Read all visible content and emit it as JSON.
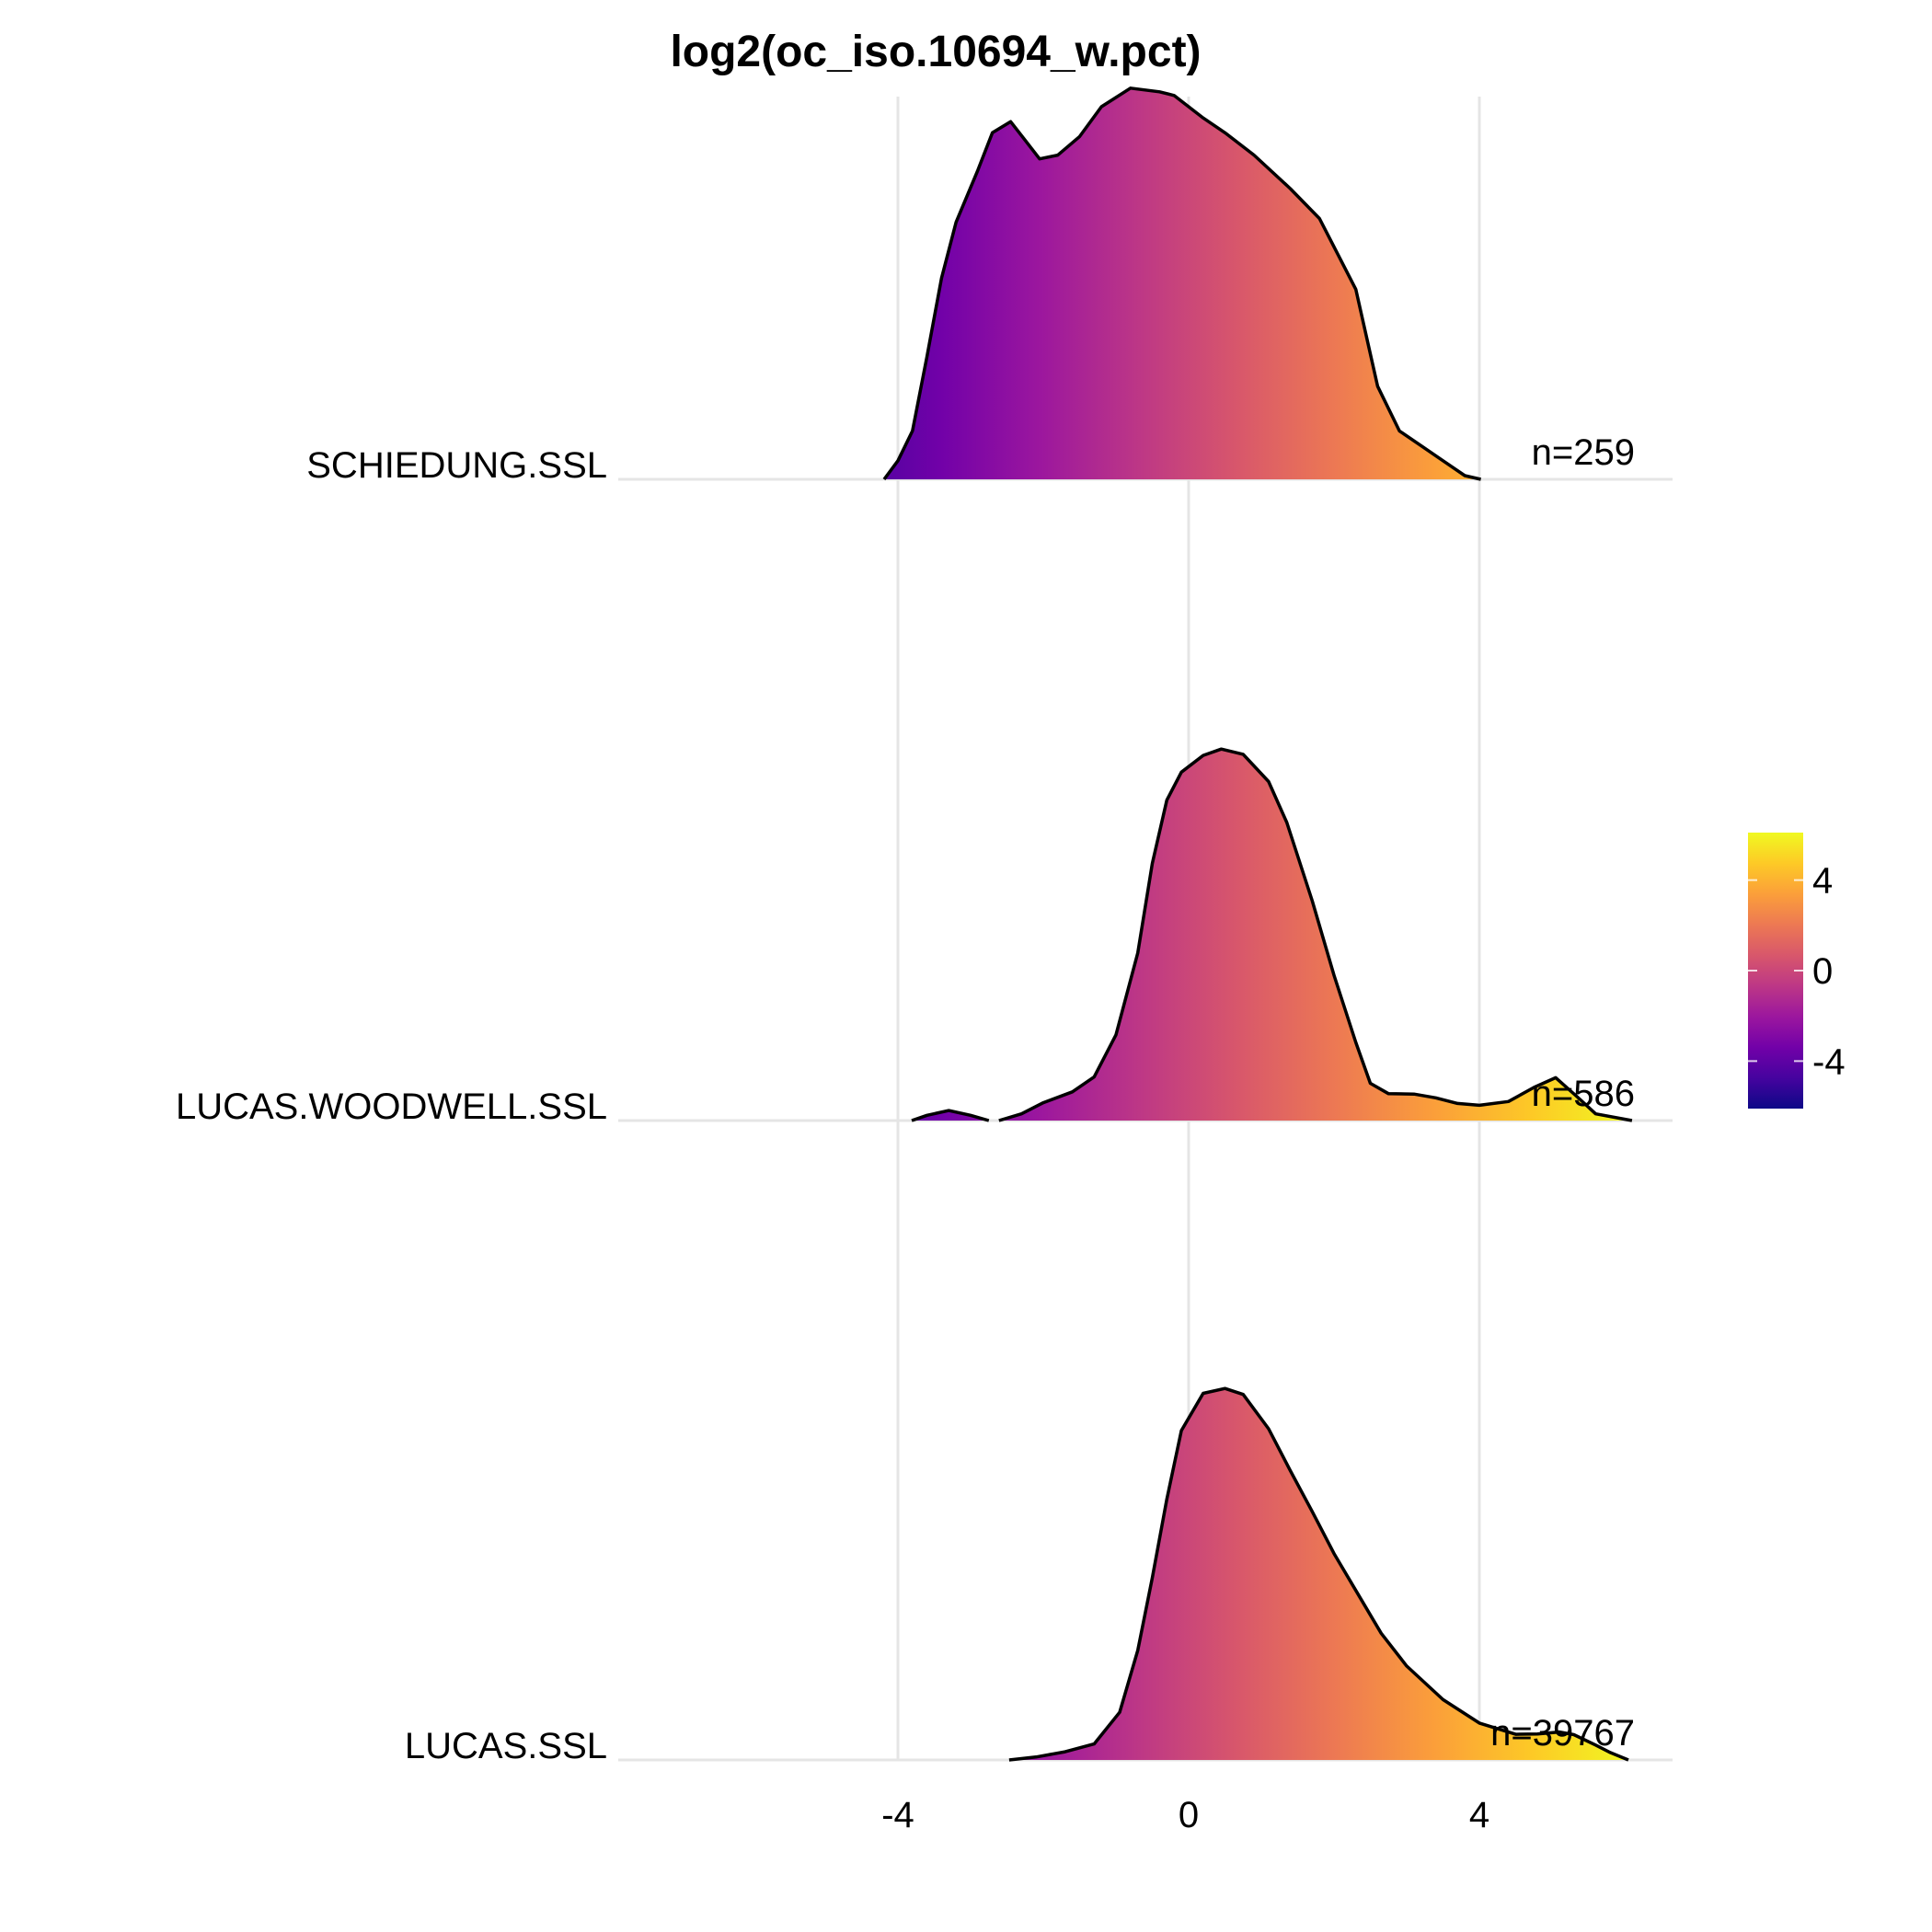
{
  "chart_data": {
    "type": "ridgeline",
    "title": "log2(oc_iso.10694_w.pct)",
    "xlabel": "",
    "ylabel": "",
    "xlim": [
      -8.5,
      6.9
    ],
    "x_ticks": [
      -4,
      0,
      4
    ],
    "x_tick_labels": [
      "-4",
      "0",
      "4"
    ],
    "grid": true,
    "categories": [
      "SCHIEDUNG.SSL",
      "LUCAS.WOODWELL.SSL",
      "LUCAS.SSL"
    ],
    "series": [
      {
        "category": "SCHIEDUNG.SSL",
        "n_label": "n=259",
        "density": [
          [
            [
              -4.19,
              0.0
            ],
            [
              -4.0,
              0.05
            ],
            [
              -3.8,
              0.13
            ],
            [
              -3.6,
              0.33
            ],
            [
              -3.4,
              0.54
            ],
            [
              -3.2,
              0.69
            ],
            [
              -2.9,
              0.83
            ],
            [
              -2.7,
              0.93
            ],
            [
              -2.45,
              0.96
            ],
            [
              -2.25,
              0.91
            ],
            [
              -2.05,
              0.86
            ],
            [
              -1.8,
              0.87
            ],
            [
              -1.5,
              0.92
            ],
            [
              -1.2,
              1.0
            ],
            [
              -0.8,
              1.05
            ],
            [
              -0.4,
              1.04
            ],
            [
              -0.2,
              1.03
            ],
            [
              0.2,
              0.97
            ],
            [
              0.5,
              0.93
            ],
            [
              0.9,
              0.87
            ],
            [
              1.4,
              0.78
            ],
            [
              1.8,
              0.7
            ],
            [
              2.3,
              0.51
            ],
            [
              2.6,
              0.25
            ],
            [
              2.9,
              0.13
            ],
            [
              3.2,
              0.09
            ],
            [
              3.5,
              0.05
            ],
            [
              3.8,
              0.01
            ],
            [
              4.02,
              0.0
            ]
          ]
        ]
      },
      {
        "category": "LUCAS.WOODWELL.SSL",
        "n_label": "n=586",
        "density": [
          [
            [
              -3.81,
              0.0
            ],
            [
              -3.6,
              0.014
            ],
            [
              -3.3,
              0.027
            ],
            [
              -3.0,
              0.014
            ],
            [
              -2.75,
              0.0
            ]
          ],
          [
            [
              -2.61,
              0.0
            ],
            [
              -2.3,
              0.018
            ],
            [
              -2.0,
              0.048
            ],
            [
              -1.6,
              0.077
            ],
            [
              -1.3,
              0.117
            ],
            [
              -1.0,
              0.23
            ],
            [
              -0.7,
              0.45
            ],
            [
              -0.5,
              0.69
            ],
            [
              -0.3,
              0.86
            ],
            [
              -0.1,
              0.935
            ],
            [
              0.2,
              0.98
            ],
            [
              0.45,
              0.997
            ],
            [
              0.75,
              0.983
            ],
            [
              1.1,
              0.91
            ],
            [
              1.35,
              0.8
            ],
            [
              1.7,
              0.59
            ],
            [
              2.0,
              0.39
            ],
            [
              2.3,
              0.21
            ],
            [
              2.5,
              0.1
            ],
            [
              2.75,
              0.072
            ],
            [
              3.1,
              0.071
            ],
            [
              3.4,
              0.061
            ],
            [
              3.7,
              0.046
            ],
            [
              4.0,
              0.041
            ],
            [
              4.4,
              0.051
            ],
            [
              4.75,
              0.089
            ],
            [
              5.05,
              0.115
            ],
            [
              5.35,
              0.063
            ],
            [
              5.6,
              0.018
            ],
            [
              6.1,
              0.0
            ]
          ]
        ]
      },
      {
        "category": "LUCAS.SSL",
        "n_label": "n=39767",
        "density": [
          [
            [
              -2.47,
              0.0
            ],
            [
              -2.1,
              0.008
            ],
            [
              -1.7,
              0.022
            ],
            [
              -1.3,
              0.043
            ],
            [
              -0.95,
              0.128
            ],
            [
              -0.7,
              0.294
            ],
            [
              -0.5,
              0.489
            ],
            [
              -0.3,
              0.7
            ],
            [
              -0.1,
              0.884
            ],
            [
              0.2,
              0.984
            ],
            [
              0.5,
              0.997
            ],
            [
              0.75,
              0.981
            ],
            [
              1.1,
              0.889
            ],
            [
              1.4,
              0.776
            ],
            [
              1.7,
              0.667
            ],
            [
              2.0,
              0.554
            ],
            [
              2.3,
              0.455
            ],
            [
              2.65,
              0.34
            ],
            [
              3.0,
              0.252
            ],
            [
              3.5,
              0.162
            ],
            [
              4.0,
              0.099
            ],
            [
              4.5,
              0.069
            ],
            [
              4.8,
              0.07
            ],
            [
              5.1,
              0.075
            ],
            [
              5.3,
              0.068
            ],
            [
              5.6,
              0.04
            ],
            [
              5.8,
              0.02
            ],
            [
              6.05,
              0.0
            ]
          ]
        ]
      }
    ],
    "colorscale": {
      "name": "plasma",
      "domain": [
        -6.1,
        6.1
      ],
      "legend_ticks": [
        4,
        0,
        -4
      ],
      "legend_tick_labels": [
        "4",
        "0",
        "-4"
      ],
      "stops": [
        "#0d0887",
        "#46039f",
        "#7201a8",
        "#9c179e",
        "#bd3786",
        "#d8576b",
        "#ed7953",
        "#fb9f3a",
        "#fdca26",
        "#f0f921"
      ]
    }
  }
}
